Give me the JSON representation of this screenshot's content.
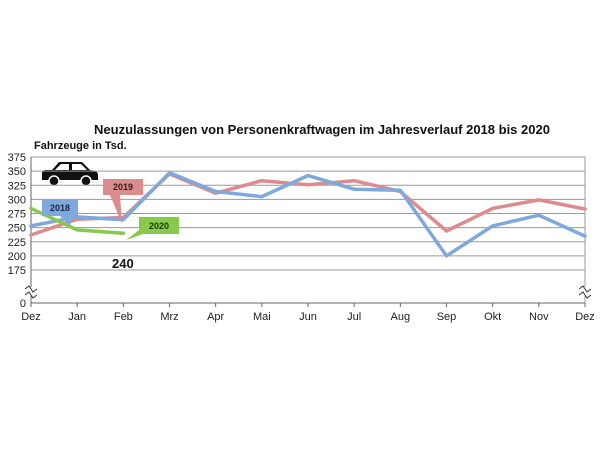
{
  "colors": {
    "series_2018": "#7fa8dc",
    "series_2019": "#dc8c8c",
    "series_2020": "#88c94e",
    "grid": "#9a9a9a",
    "axis": "#666666"
  },
  "icons": {
    "car": "car-icon"
  },
  "chart_data": {
    "type": "line",
    "title": "Neuzulassungen von Personenkraftwagen im Jahresverlauf 2018 bis 2020",
    "ylabel": "Fahrzeuge in Tsd.",
    "xlabel": "",
    "categories": [
      "Dez",
      "Jan",
      "Feb",
      "Mrz",
      "Apr",
      "Mai",
      "Jun",
      "Jul",
      "Aug",
      "Sep",
      "Okt",
      "Nov",
      "Dez"
    ],
    "yticks": [
      0,
      175,
      200,
      225,
      250,
      275,
      300,
      325,
      350,
      375
    ],
    "ylim": [
      175,
      375
    ],
    "axis_break": true,
    "grid": true,
    "series": [
      {
        "name": "2018",
        "color_key": "series_2018",
        "values": [
          253,
          269,
          264,
          347,
          314,
          305,
          342,
          318,
          316,
          200,
          253,
          272,
          235
        ]
      },
      {
        "name": "2019",
        "color_key": "series_2019",
        "values": [
          237,
          265,
          268,
          345,
          311,
          333,
          326,
          333,
          314,
          244,
          284,
          299,
          283
        ]
      },
      {
        "name": "2020",
        "color_key": "series_2020",
        "values": [
          284,
          246,
          240,
          null,
          null,
          null,
          null,
          null,
          null,
          null,
          null,
          null,
          null
        ]
      }
    ],
    "annotations": [
      {
        "text": "240"
      }
    ]
  }
}
